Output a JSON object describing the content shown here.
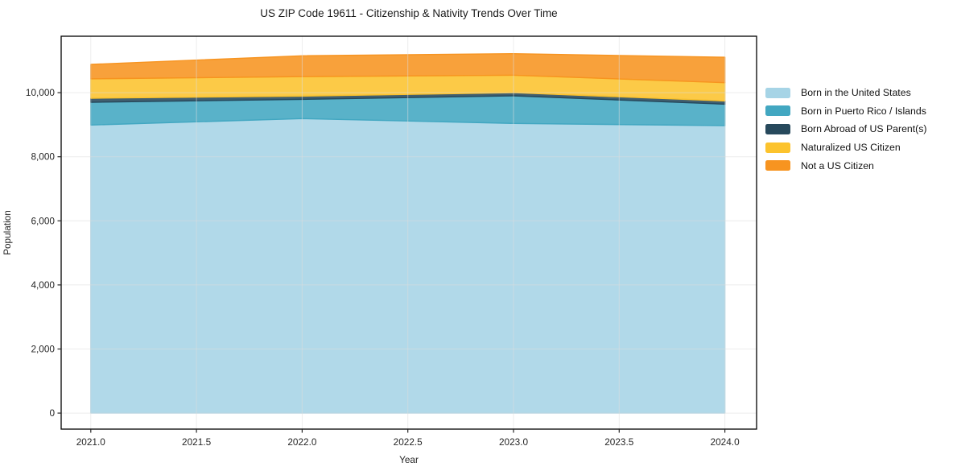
{
  "title": "US ZIP Code 19611 - Citizenship & Nativity Trends Over Time",
  "chart_data": {
    "type": "area",
    "stacked": true,
    "title": "US ZIP Code 19611 - Citizenship & Nativity Trends Over Time",
    "xlabel": "Year",
    "ylabel": "Population",
    "x": [
      2021,
      2022,
      2023,
      2024
    ],
    "series": [
      {
        "name": "Born in the United States",
        "color": "#a6d4e6",
        "values": [
          8990,
          9190,
          9040,
          8970
        ]
      },
      {
        "name": "Born in Puerto Rico / Islands",
        "color": "#42a7c1",
        "values": [
          710,
          600,
          860,
          670
        ]
      },
      {
        "name": "Born Abroad of US Parent(s)",
        "color": "#27495c",
        "values": [
          125,
          100,
          100,
          100
        ]
      },
      {
        "name": "Naturalized US Citizen",
        "color": "#fcc32d",
        "values": [
          605,
          610,
          545,
          570
        ]
      },
      {
        "name": "Not a US Citizen",
        "color": "#f79420",
        "values": [
          450,
          650,
          670,
          795
        ]
      }
    ],
    "stacked_totals": [
      10880,
      11150,
      11215,
      11105
    ],
    "xlim": [
      2020.86,
      2024.15
    ],
    "ylim": [
      -500,
      11760
    ],
    "x_tick_values": [
      2021,
      2021.5,
      2022,
      2022.5,
      2023,
      2023.5,
      2024
    ],
    "x_tick_labels": [
      "2021.0",
      "2021.5",
      "2022.0",
      "2022.5",
      "2023.0",
      "2023.5",
      "2024.0"
    ],
    "y_tick_values": [
      0,
      2000,
      4000,
      6000,
      8000,
      10000
    ],
    "y_tick_labels": [
      "0",
      "2,000",
      "4,000",
      "6,000",
      "8,000",
      "10,000"
    ],
    "grid": true,
    "legend_position": "right-outside",
    "spine_color": "#000000",
    "grid_color": "#dcdcdc",
    "tick_color": "#262626",
    "background_color": "#ffffff"
  }
}
